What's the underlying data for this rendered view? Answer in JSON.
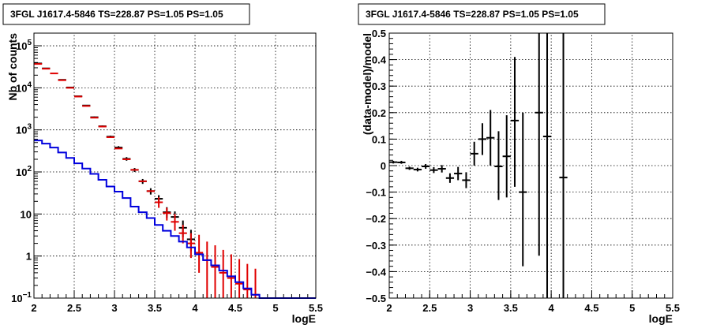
{
  "chart_data": [
    {
      "type": "line",
      "title": "3FGL J1617.4-5846 TS=228.87 PS=1.05 PS=1.05",
      "xlabel": "logE",
      "ylabel": "Nb of counts",
      "xlim": [
        2,
        5.5
      ],
      "ylim": [
        0.1,
        200000
      ],
      "yscale": "log",
      "grid": true,
      "x_ticks": [
        "2",
        "2.5",
        "3",
        "3.5",
        "4",
        "4.5",
        "5",
        "5.5"
      ],
      "y_ticks": [
        {
          "value": 0.1,
          "base": "10",
          "exp": "−1"
        },
        {
          "value": 1,
          "base": "1",
          "exp": ""
        },
        {
          "value": 10,
          "base": "10",
          "exp": ""
        },
        {
          "value": 100,
          "base": "10",
          "exp": "2"
        },
        {
          "value": 1000,
          "base": "10",
          "exp": "3"
        },
        {
          "value": 10000,
          "base": "10",
          "exp": "4"
        },
        {
          "value": 100000,
          "base": "10",
          "exp": "5"
        }
      ],
      "series": [
        {
          "color": "#000000",
          "style": "crosses",
          "points": [
            {
              "x": 2.05,
              "y": 38000,
              "lo": 37600,
              "hi": 38400
            },
            {
              "x": 2.15,
              "y": 29000,
              "lo": 28650,
              "hi": 29350
            },
            {
              "x": 2.35,
              "y": 15500,
              "lo": 15250,
              "hi": 15750
            },
            {
              "x": 2.45,
              "y": 10200,
              "lo": 10000,
              "hi": 10400
            },
            {
              "x": 2.55,
              "y": 6300,
              "lo": 6150,
              "hi": 6450
            },
            {
              "x": 2.65,
              "y": 3800,
              "lo": 3690,
              "hi": 3910
            },
            {
              "x": 2.75,
              "y": 2000,
              "lo": 1920,
              "hi": 2080
            },
            {
              "x": 2.85,
              "y": 1220,
              "lo": 1160,
              "hi": 1280
            },
            {
              "x": 2.95,
              "y": 690,
              "lo": 650,
              "hi": 730
            },
            {
              "x": 3.05,
              "y": 380,
              "lo": 350,
              "hi": 410
            },
            {
              "x": 3.15,
              "y": 205,
              "lo": 185,
              "hi": 225
            },
            {
              "x": 3.25,
              "y": 112,
              "lo": 100,
              "hi": 124
            },
            {
              "x": 3.35,
              "y": 60,
              "lo": 52,
              "hi": 68
            },
            {
              "x": 3.45,
              "y": 35,
              "lo": 29,
              "hi": 41
            },
            {
              "x": 3.55,
              "y": 23,
              "lo": 18,
              "hi": 28
            },
            {
              "x": 3.65,
              "y": 11,
              "lo": 8,
              "hi": 14.5
            },
            {
              "x": 3.75,
              "y": 8.5,
              "lo": 5.7,
              "hi": 11.5
            },
            {
              "x": 3.85,
              "y": 4.7,
              "lo": 2.8,
              "hi": 7
            },
            {
              "x": 3.95,
              "y": 2.5,
              "lo": 1.3,
              "hi": 4.2
            }
          ]
        },
        {
          "color": "#e00000",
          "style": "crosses",
          "points": [
            {
              "x": 2.05,
              "y": 37000,
              "lo": 37000,
              "hi": 37000
            },
            {
              "x": 2.15,
              "y": 28500,
              "lo": 28500,
              "hi": 28500
            },
            {
              "x": 2.25,
              "y": 22000,
              "lo": 22000,
              "hi": 22000
            },
            {
              "x": 2.35,
              "y": 15200,
              "lo": 15200,
              "hi": 15200
            },
            {
              "x": 2.45,
              "y": 10000,
              "lo": 10000,
              "hi": 10000
            },
            {
              "x": 2.55,
              "y": 6200,
              "lo": 6200,
              "hi": 6200
            },
            {
              "x": 2.65,
              "y": 3700,
              "lo": 3700,
              "hi": 3700
            },
            {
              "x": 2.75,
              "y": 1950,
              "lo": 1950,
              "hi": 1950
            },
            {
              "x": 2.85,
              "y": 1200,
              "lo": 1200,
              "hi": 1200
            },
            {
              "x": 2.95,
              "y": 670,
              "lo": 670,
              "hi": 670
            },
            {
              "x": 3.05,
              "y": 360,
              "lo": 360,
              "hi": 360
            },
            {
              "x": 3.15,
              "y": 200,
              "lo": 200,
              "hi": 200
            },
            {
              "x": 3.25,
              "y": 112,
              "lo": 112,
              "hi": 112
            },
            {
              "x": 3.35,
              "y": 60,
              "lo": 60,
              "hi": 60
            },
            {
              "x": 3.45,
              "y": 35,
              "lo": 35,
              "hi": 35
            },
            {
              "x": 3.55,
              "y": 19,
              "lo": 14,
              "hi": 25
            },
            {
              "x": 3.65,
              "y": 10.5,
              "lo": 7,
              "hi": 14
            },
            {
              "x": 3.75,
              "y": 6.5,
              "lo": 4,
              "hi": 10
            },
            {
              "x": 3.85,
              "y": 3.5,
              "lo": 2,
              "hi": 5.5
            },
            {
              "x": 3.95,
              "y": 2.0,
              "lo": 0.9,
              "hi": 3.5
            },
            {
              "x": 4.05,
              "y": 1.2,
              "lo": 0.4,
              "hi": 3.2
            },
            {
              "x": 4.15,
              "y": 0.8,
              "lo": 0.1,
              "hi": 2.2
            },
            {
              "x": 4.25,
              "y": 0.55,
              "lo": 0.1,
              "hi": 1.8
            },
            {
              "x": 4.35,
              "y": 0.4,
              "lo": 0.1,
              "hi": 1.4
            },
            {
              "x": 4.45,
              "y": 0.3,
              "lo": 0.1,
              "hi": 1.1
            },
            {
              "x": 4.55,
              "y": 0.22,
              "lo": 0.1,
              "hi": 0.85
            },
            {
              "x": 4.65,
              "y": 0.16,
              "lo": 0.1,
              "hi": 0.65
            },
            {
              "x": 4.75,
              "y": 0.12,
              "lo": 0.1,
              "hi": 0.5
            }
          ]
        },
        {
          "color": "#0000dd",
          "style": "step",
          "edges": [
            2.0,
            2.1,
            2.2,
            2.3,
            2.4,
            2.5,
            2.6,
            2.7,
            2.8,
            2.9,
            3.0,
            3.1,
            3.2,
            3.3,
            3.4,
            3.5,
            3.6,
            3.7,
            3.8,
            3.9,
            4.0,
            4.1,
            4.2,
            4.3,
            4.4,
            4.5,
            4.6,
            4.7,
            4.8,
            4.9,
            5.0,
            5.5
          ],
          "values": [
            560,
            470,
            380,
            290,
            215,
            160,
            120,
            90,
            65,
            45,
            34,
            24,
            15,
            11,
            8,
            5.5,
            4.0,
            3.0,
            2.2,
            1.6,
            1.1,
            0.8,
            0.6,
            0.45,
            0.33,
            0.24,
            0.17,
            0.12,
            0.1,
            0.1,
            0.1
          ]
        }
      ]
    },
    {
      "type": "scatter",
      "title": "3FGL J1617.4-5846 TS=228.87 PS=1.05 PS=1.05",
      "xlabel": "logE",
      "ylabel": "(data-model)/model",
      "xlim": [
        2,
        5.5
      ],
      "ylim": [
        -0.5,
        0.5
      ],
      "grid": true,
      "x_ticks": [
        "2",
        "2.5",
        "3",
        "3.5",
        "4",
        "4.5",
        "5",
        "5.5"
      ],
      "y_ticks": [
        "−0.5",
        "−0.4",
        "−0.3",
        "−0.2",
        "−0.1",
        "0",
        "0.1",
        "0.2",
        "0.3",
        "0.4",
        "0.5"
      ],
      "series": [
        {
          "color": "#000000",
          "points": [
            {
              "x": 2.05,
              "y": 0.013,
              "lo": 0.008,
              "hi": 0.018
            },
            {
              "x": 2.15,
              "y": 0.012,
              "lo": 0.007,
              "hi": 0.018
            },
            {
              "x": 2.25,
              "y": -0.01,
              "lo": -0.016,
              "hi": -0.004
            },
            {
              "x": 2.35,
              "y": -0.015,
              "lo": -0.022,
              "hi": -0.008
            },
            {
              "x": 2.45,
              "y": -0.003,
              "lo": -0.012,
              "hi": 0.006
            },
            {
              "x": 2.55,
              "y": -0.017,
              "lo": -0.028,
              "hi": -0.006
            },
            {
              "x": 2.65,
              "y": -0.012,
              "lo": -0.026,
              "hi": 0.002
            },
            {
              "x": 2.75,
              "y": -0.047,
              "lo": -0.065,
              "hi": -0.029
            },
            {
              "x": 2.85,
              "y": -0.03,
              "lo": -0.055,
              "hi": -0.005
            },
            {
              "x": 2.95,
              "y": -0.055,
              "lo": -0.085,
              "hi": -0.025
            },
            {
              "x": 3.05,
              "y": 0.045,
              "lo": 0.0,
              "hi": 0.09
            },
            {
              "x": 3.15,
              "y": 0.1,
              "lo": 0.04,
              "hi": 0.16
            },
            {
              "x": 3.25,
              "y": 0.105,
              "lo": 0.0,
              "hi": 0.21
            },
            {
              "x": 3.35,
              "y": -0.003,
              "lo": -0.13,
              "hi": 0.13
            },
            {
              "x": 3.45,
              "y": 0.035,
              "lo": -0.12,
              "hi": 0.19
            },
            {
              "x": 3.55,
              "y": 0.17,
              "lo": -0.08,
              "hi": 0.41
            },
            {
              "x": 3.65,
              "y": -0.1,
              "lo": -0.38,
              "hi": 0.2
            },
            {
              "x": 3.85,
              "y": 0.2,
              "lo": -0.34,
              "hi": 0.5
            },
            {
              "x": 3.95,
              "y": 0.11,
              "lo": -0.5,
              "hi": 0.5
            },
            {
              "x": 4.15,
              "y": -0.045,
              "lo": -0.5,
              "hi": 0.5
            }
          ]
        }
      ]
    }
  ]
}
